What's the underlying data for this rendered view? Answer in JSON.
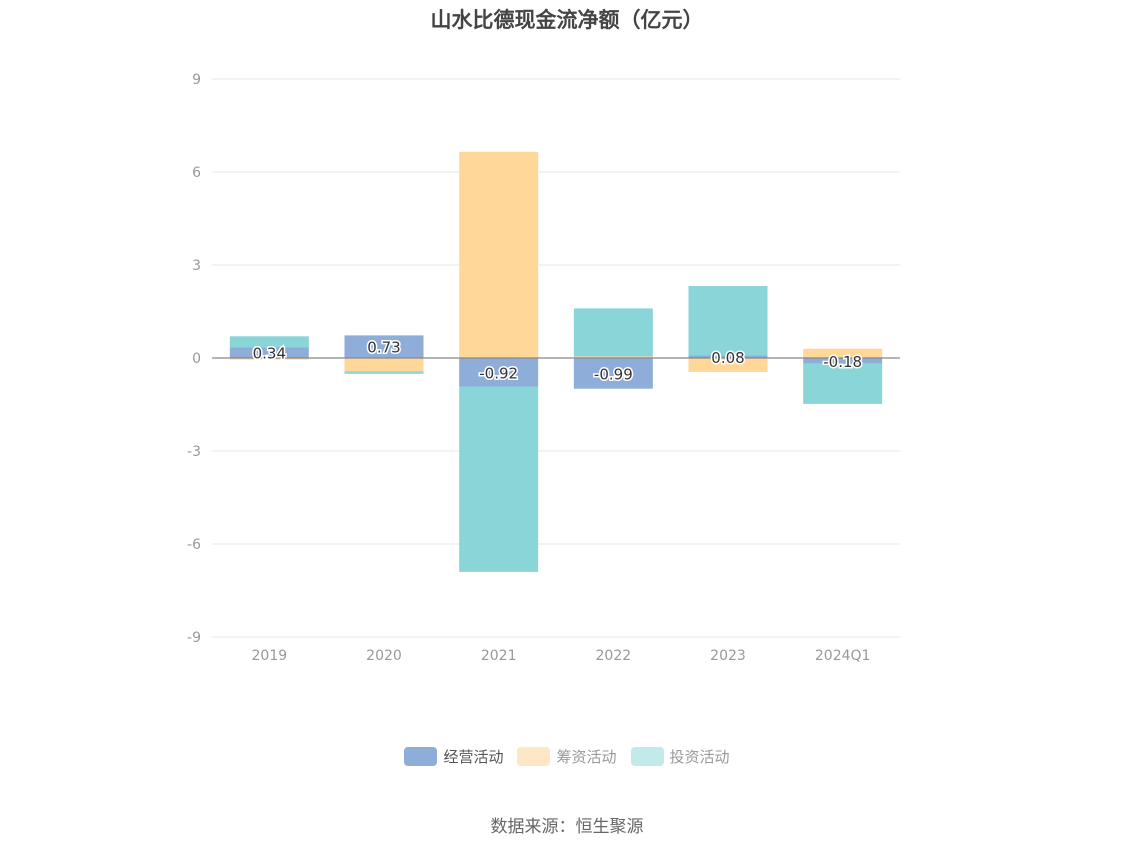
{
  "title": "山水比德现金流净额（亿元）",
  "source": "数据来源：恒生聚源",
  "legend": [
    {
      "label": "经营活动",
      "color": "#8fadd9",
      "text_color": "#555555"
    },
    {
      "label": "筹资活动",
      "color": "#fde7c4",
      "text_color": "#999999"
    },
    {
      "label": "投资活动",
      "color": "#c2eaeb",
      "text_color": "#999999"
    }
  ],
  "colors": {
    "operating": "#8fadd9",
    "financing": "#fed799",
    "investing": "#89d5d8",
    "grid": "#e3e7f3",
    "zero_axis": "#888888",
    "tick_text": "#999999"
  },
  "chart_data": {
    "type": "bar",
    "stacked": true,
    "title": "山水比德现金流净额（亿元）",
    "xlabel": "",
    "ylabel": "",
    "ylim": [
      -9,
      9
    ],
    "yticks": [
      9,
      6,
      3,
      0,
      -3,
      -6,
      -9
    ],
    "grid": true,
    "legend_position": "bottom",
    "categories": [
      "2019",
      "2020",
      "2021",
      "2022",
      "2023",
      "2024Q1"
    ],
    "series": [
      {
        "name": "经营活动",
        "values": [
          0.34,
          0.73,
          -0.92,
          -0.99,
          0.08,
          -0.18
        ],
        "labeled": true
      },
      {
        "name": "筹资活动",
        "values": [
          -0.05,
          -0.43,
          6.65,
          0.05,
          -0.45,
          0.3
        ]
      },
      {
        "name": "投资活动",
        "values": [
          0.36,
          -0.08,
          -5.98,
          1.55,
          2.24,
          -1.3
        ]
      }
    ],
    "data_labels": [
      "0.34",
      "0.73",
      "-0.92",
      "-0.99",
      "0.08",
      "-0.18"
    ]
  }
}
